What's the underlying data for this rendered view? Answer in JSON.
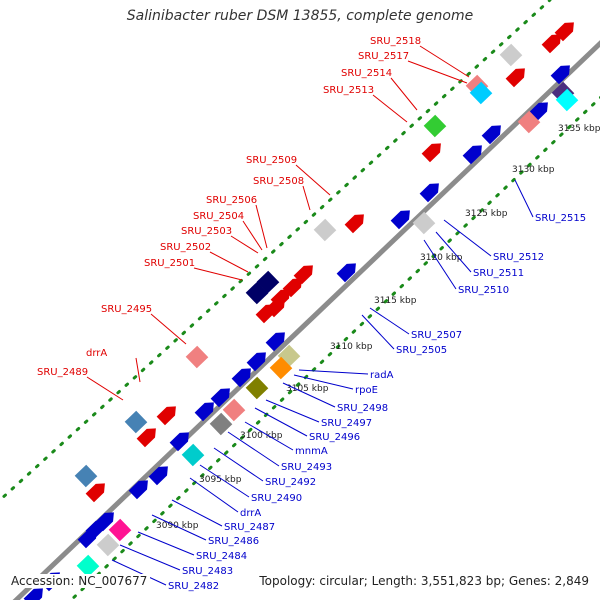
{
  "title": "Salinibacter ruber DSM 13855, complete genome",
  "footer": {
    "accession": "Accession: NC_007677",
    "summary": "Topology: circular; Length: 3,551,823 bp; Genes: 2,849"
  },
  "colors": {
    "backbone": "#8c8c8c",
    "forward_label": "#e00000",
    "reverse_label": "#0000cc",
    "tick_dots": "#1a8a1a"
  },
  "ticks": [
    "3090 kbp",
    "3095 kbp",
    "3100 kbp",
    "3105 kbp",
    "3110 kbp",
    "3115 kbp",
    "3120 kbp",
    "3125 kbp",
    "3130 kbp",
    "3135 kbp"
  ],
  "forward_labels": [
    "SRU_2518",
    "SRU_2517",
    "SRU_2514",
    "SRU_2513",
    "SRU_2509",
    "SRU_2508",
    "SRU_2506",
    "SRU_2504",
    "SRU_2503",
    "SRU_2502",
    "SRU_2501",
    "SRU_2495",
    "drrA",
    "SRU_2489"
  ],
  "reverse_labels": [
    "SRU_2515",
    "SRU_2512",
    "SRU_2511",
    "SRU_2510",
    "SRU_2507",
    "SRU_2505",
    "radA",
    "rpoE",
    "SRU_2498",
    "SRU_2497",
    "SRU_2496",
    "mnmA",
    "SRU_2493",
    "SRU_2492",
    "SRU_2490",
    "drrA",
    "SRU_2487",
    "SRU_2486",
    "SRU_2484",
    "SRU_2483",
    "SRU_2482"
  ]
}
